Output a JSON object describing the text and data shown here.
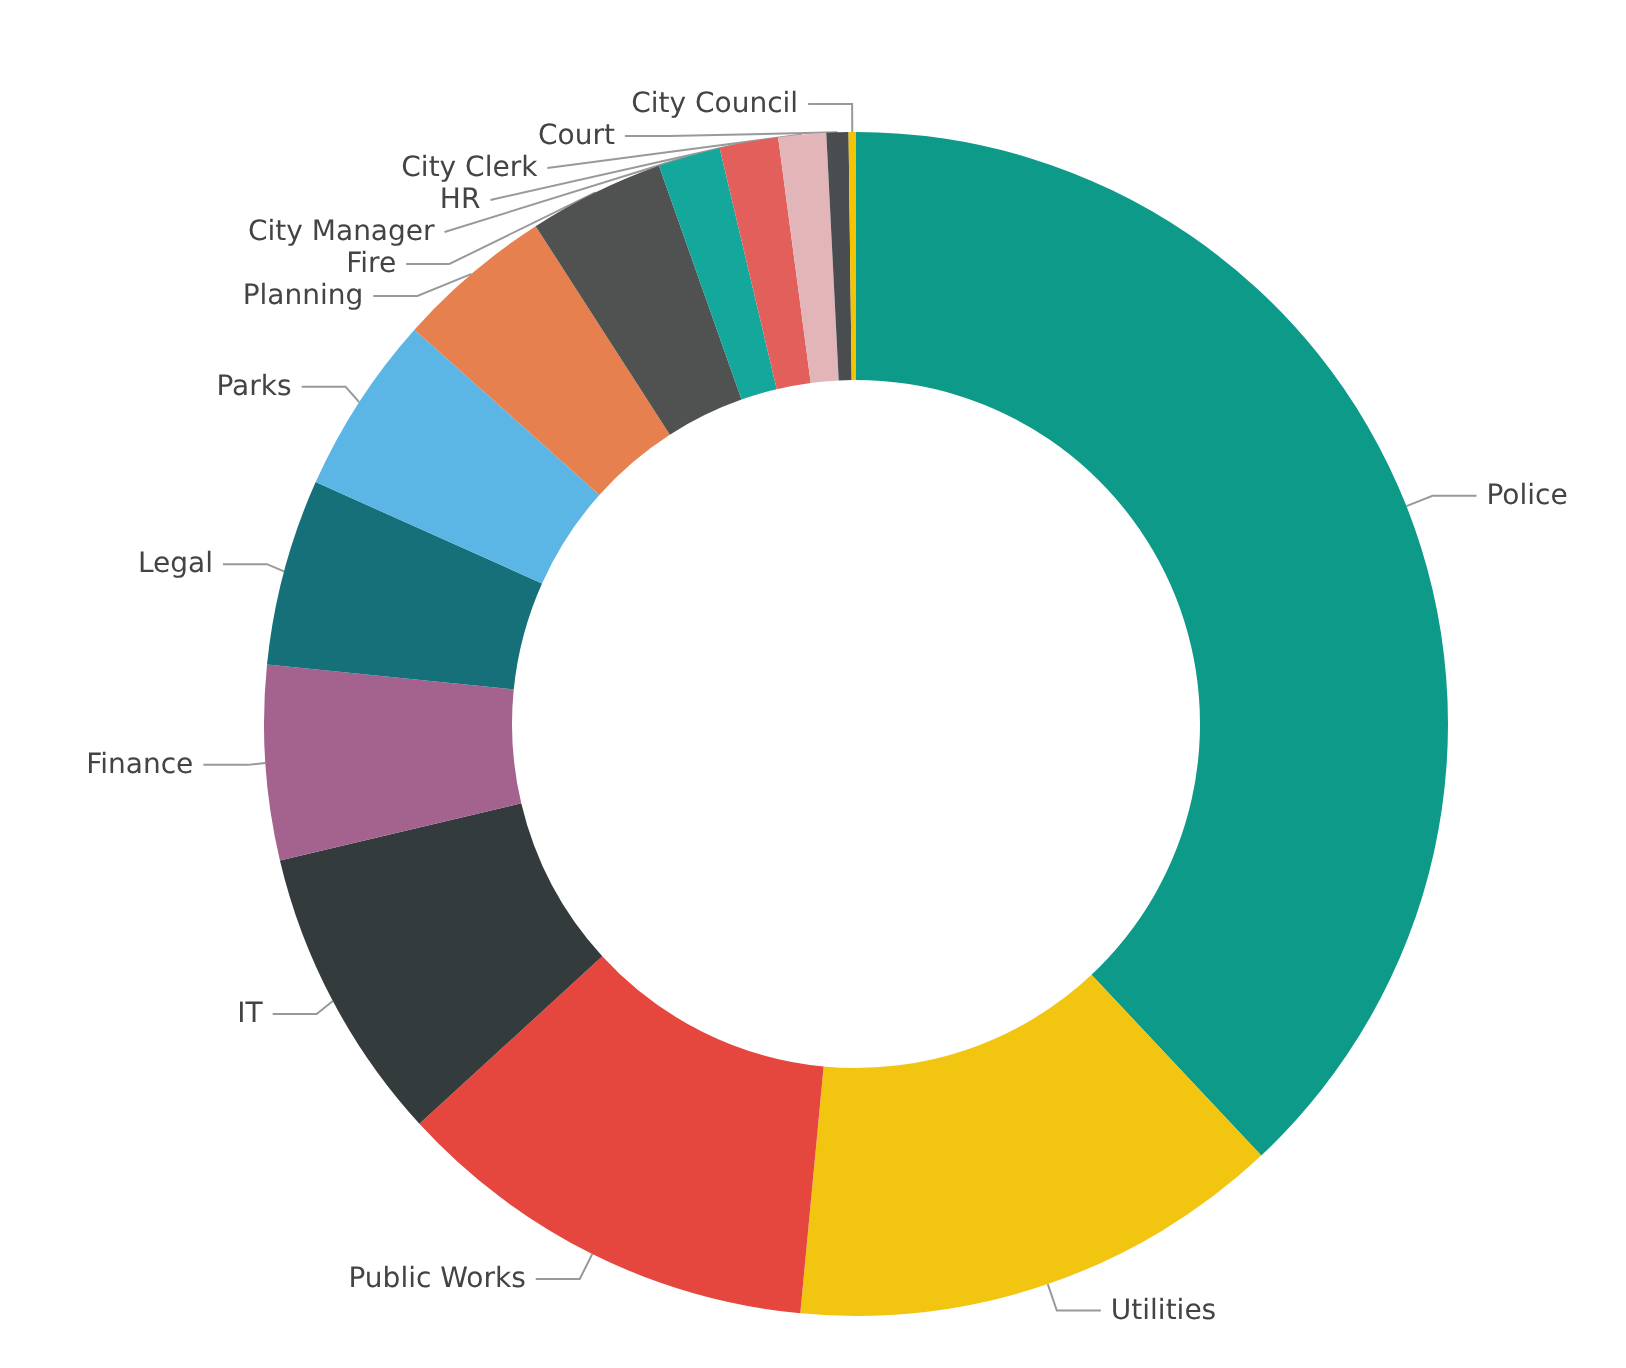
{
  "chart_data": {
    "type": "donut",
    "categories": [
      "Police",
      "Utilities",
      "Public Works",
      "IT",
      "Finance",
      "Legal",
      "Parks",
      "Planning",
      "Fire",
      "City Manager",
      "HR",
      "City Clerk",
      "Court",
      "City Council"
    ],
    "values": [
      38.0,
      13.5,
      11.7,
      8.1,
      5.3,
      5.1,
      4.9,
      4.3,
      3.7,
      1.7,
      1.6,
      1.3,
      0.6,
      0.2
    ],
    "colors": [
      "#0e9a88",
      "#f2c511",
      "#e5473e",
      "#333b3d",
      "#a4628f",
      "#157079",
      "#5bb6e6",
      "#e7804f",
      "#4f5251",
      "#14a79b",
      "#e35f5c",
      "#e2b6b9",
      "#4a4d50",
      "#f4c400"
    ]
  }
}
